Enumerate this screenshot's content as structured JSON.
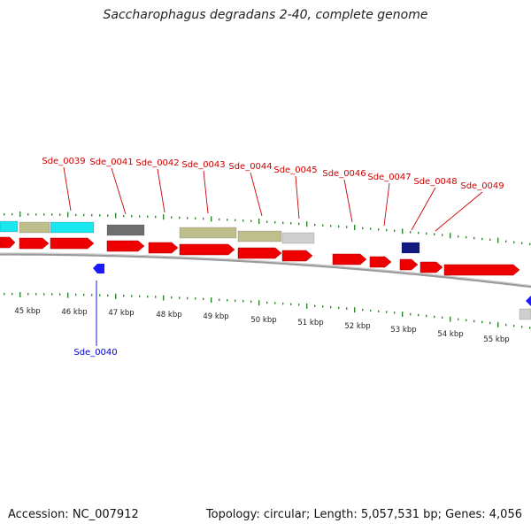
{
  "title": "Saccharophagus degradans 2-40, complete genome",
  "accession": "Accession: NC_007912",
  "topology": "Topology: circular; Length: 5,057,531 bp; Genes: 4,056",
  "colors": {
    "plus_strand_gene_label": "#cc0000",
    "minus_strand_gene_label": "#0000cc",
    "cds": "#ee0000",
    "cds_minus": "#1a1aff",
    "tick": "#2a8a2a",
    "backbone": "#888888",
    "cog_cyan": "#19e6ee",
    "cog_olive": "#bfbf8c",
    "cog_darkgray": "#6e6e6e",
    "cog_lightgray": "#cfcfcf",
    "cog_navy": "#101a80"
  },
  "kbp_ticks": [
    "45 kbp",
    "46 kbp",
    "47 kbp",
    "48 kbp",
    "49 kbp",
    "50 kbp",
    "51 kbp",
    "52 kbp",
    "53 kbp",
    "54 kbp",
    "55 kbp"
  ],
  "genes_plus": [
    "Sde_0039",
    "Sde_0041",
    "Sde_0042",
    "Sde_0043",
    "Sde_0044",
    "Sde_0045",
    "Sde_0046",
    "Sde_0047",
    "Sde_0048",
    "Sde_0049"
  ],
  "genes_minus": [
    "Sde_0040"
  ]
}
